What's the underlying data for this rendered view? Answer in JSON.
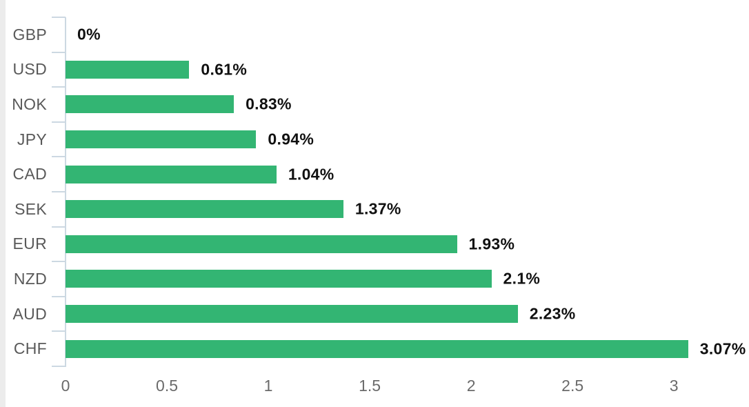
{
  "chart_data": {
    "type": "bar",
    "orientation": "horizontal",
    "title": "",
    "categories": [
      "GBP",
      "USD",
      "NOK",
      "JPY",
      "CAD",
      "SEK",
      "EUR",
      "NZD",
      "AUD",
      "CHF"
    ],
    "values": [
      0,
      0.61,
      0.83,
      0.94,
      1.04,
      1.37,
      1.93,
      2.1,
      2.23,
      3.07
    ],
    "value_labels": [
      "0%",
      "0.61%",
      "0.83%",
      "0.94%",
      "1.04%",
      "1.37%",
      "1.93%",
      "2.1%",
      "2.23%",
      "3.07%"
    ],
    "x_ticks": [
      0,
      0.5,
      1,
      1.5,
      2,
      2.5,
      3
    ],
    "x_tick_labels": [
      "0",
      "0.5",
      "1",
      "1.5",
      "2",
      "2.5",
      "3"
    ],
    "xlim": [
      0,
      3.37
    ],
    "grid": false,
    "legend": "none",
    "colors": {
      "bar": "#33b573",
      "axis_line": "#ccd8e2",
      "category_label": "#595959",
      "x_tick_label": "#6a6a6a",
      "value_label": "#111111",
      "background": "#ffffff",
      "left_edge_strip": "#ececec"
    }
  }
}
